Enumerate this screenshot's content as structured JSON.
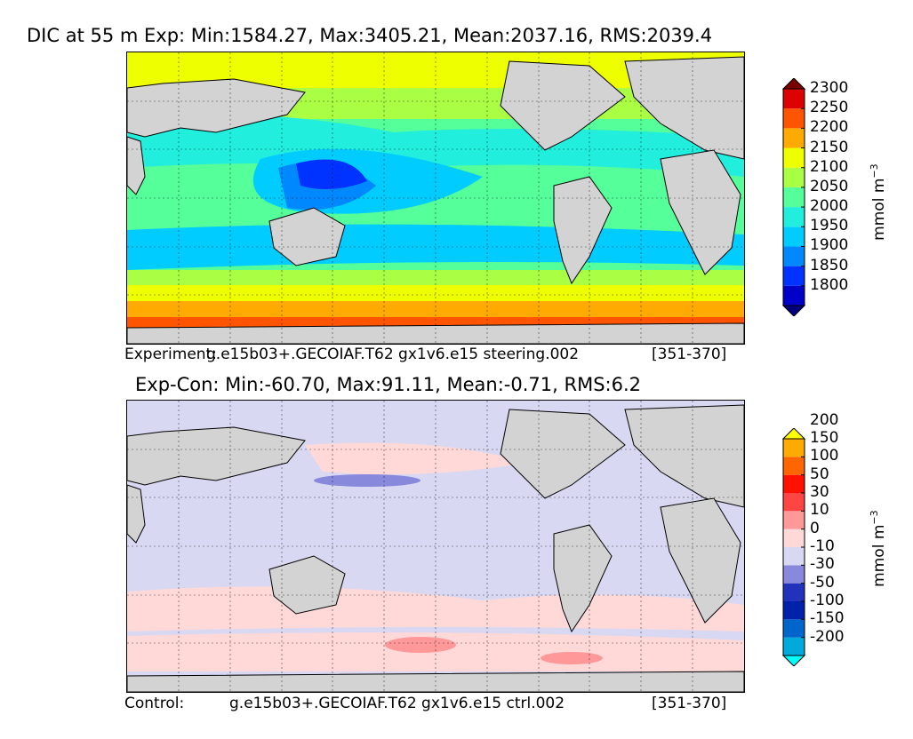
{
  "top_panel": {
    "title": "DIC at 55 m Exp: Min:1584.27, Max:3405.21, Mean:2037.16, RMS:2039.4",
    "caption_label": "Experiment:",
    "caption_case": "g.e15b03+.GECOIAF.T62 gx1v6.e15 steering.002",
    "caption_years": "[351-370]"
  },
  "bottom_panel": {
    "title": "Exp-Con: Min:-60.70, Max:91.11, Mean:-0.71, RMS:6.2",
    "caption_label": "Control:",
    "caption_case": "g.e15b03+.GECOIAF.T62 gx1v6.e15 ctrl.002",
    "caption_years": "[351-370]"
  },
  "chart_data": [
    {
      "type": "heatmap",
      "title": "DIC at 55 m Exp: Min:1584.27, Max:3405.21, Mean:2037.16, RMS:2039.4",
      "field": "DIC",
      "depth": "55 m",
      "stats": {
        "min": 1584.27,
        "max": 3405.21,
        "mean": 2037.16,
        "rms": 2039.4
      },
      "colorbar": {
        "label": "mmol m",
        "label_exponent": "−3",
        "levels": [
          1800,
          1850,
          1900,
          1950,
          2000,
          2050,
          2100,
          2150,
          2200,
          2250,
          2300
        ],
        "tick_labels": [
          "1800",
          "1850",
          "1900",
          "1950",
          "2000",
          "2050",
          "2100",
          "2150",
          "2200",
          "2250",
          "2300"
        ],
        "colors": [
          "#00007a",
          "#0000c8",
          "#0033ff",
          "#0088ff",
          "#00ccff",
          "#22eedd",
          "#55ff99",
          "#aaff44",
          "#eeff00",
          "#ffaa00",
          "#ff5500",
          "#dd0000",
          "#7a0000"
        ],
        "extend": "both"
      },
      "grid": true,
      "land_color": "#d3d3d3"
    },
    {
      "type": "heatmap",
      "title": "Exp-Con: Min:-60.70, Max:91.11, Mean:-0.71, RMS:6.2",
      "field": "DIC difference",
      "stats": {
        "min": -60.7,
        "max": 91.11,
        "mean": -0.71,
        "rms": 6.2
      },
      "colorbar": {
        "label": "mmol m",
        "label_exponent": "−3",
        "levels": [
          -200,
          -150,
          -100,
          -50,
          -30,
          -10,
          0,
          10,
          30,
          50,
          100,
          150,
          200
        ],
        "tick_labels": [
          "-200",
          "-150",
          "-100",
          "-50",
          "-30",
          "-10",
          "0",
          "10",
          "30",
          "50",
          "100",
          "150",
          "200"
        ],
        "colors": [
          "#00ffff",
          "#00aadd",
          "#0066cc",
          "#0022aa",
          "#2233bb",
          "#8888dd",
          "#d8d8f2",
          "#ffd8d8",
          "#ff9999",
          "#ff4444",
          "#ff1100",
          "#ff6600",
          "#ffaa00",
          "#ffff00"
        ],
        "extend": "both"
      },
      "grid": true,
      "land_color": "#d3d3d3"
    }
  ]
}
